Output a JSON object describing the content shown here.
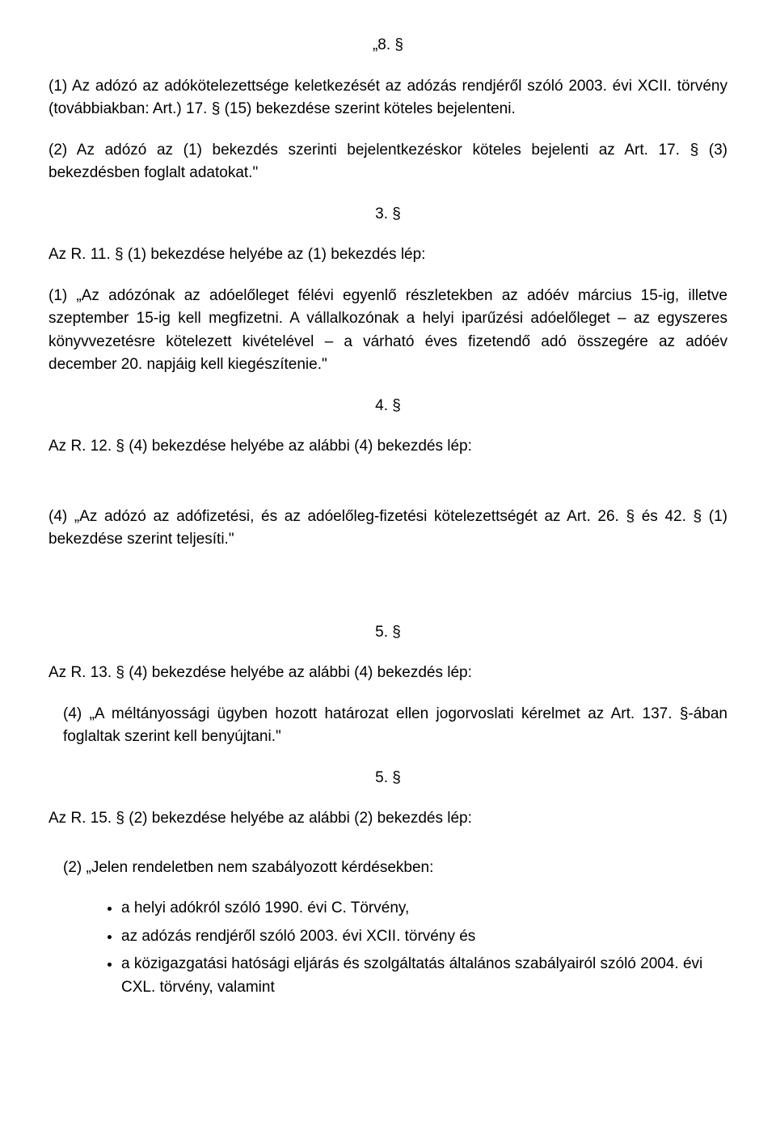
{
  "s8": {
    "num": "„8. §",
    "p1": "(1) Az adózó az adókötelezettsége keletkezését az adózás rendjéről szóló 2003. évi XCII. törvény (továbbiakban: Art.) 17. § (15) bekezdése szerint köteles bejelenteni.",
    "p2": "(2) Az adózó az (1) bekezdés szerinti bejelentkezéskor köteles bejelenti az Art. 17. § (3) bekezdésben foglalt adatokat.\""
  },
  "s3": {
    "num": "3. §",
    "lead": "Az R. 11. § (1) bekezdése helyébe az (1) bekezdés lép:",
    "p1": "(1) „Az adózónak az adóelőleget félévi egyenlő részletekben az adóév március 15-ig, illetve szeptember 15-ig kell megfizetni. A vállalkozónak a helyi iparűzési adóelőleget – az egyszeres könyvvezetésre kötelezett kivételével – a várható éves fizetendő adó összegére az adóév december 20. napjáig kell kiegészítenie.\""
  },
  "s4": {
    "num": "4. §",
    "lead": "Az R. 12. § (4) bekezdése helyébe az alábbi (4) bekezdés lép:",
    "p1": "(4) „Az adózó az adófizetési, és az adóelőleg-fizetési kötelezettségét az Art. 26. § és 42. § (1) bekezdése szerint teljesíti.\""
  },
  "s5a": {
    "num": "5. §",
    "lead": "Az R. 13. § (4) bekezdése helyébe az alábbi (4) bekezdés lép:",
    "p1": "(4) „A méltányossági ügyben hozott határozat ellen jogorvoslati kérelmet az Art. 137. §-ában foglaltak szerint kell benyújtani.\""
  },
  "s5b": {
    "num": "5. §",
    "lead": "Az R. 15. § (2) bekezdése helyébe az alábbi (2) bekezdés lép:",
    "p1": "(2) „Jelen rendeletben nem szabályozott kérdésekben:",
    "bullets": [
      "a helyi adókról szóló 1990. évi C. Törvény,",
      "az adózás rendjéről szóló 2003. évi XCII. törvény és",
      "a közigazgatási hatósági eljárás és szolgáltatás általános szabályairól szóló 2004. évi CXL. törvény, valamint"
    ]
  }
}
